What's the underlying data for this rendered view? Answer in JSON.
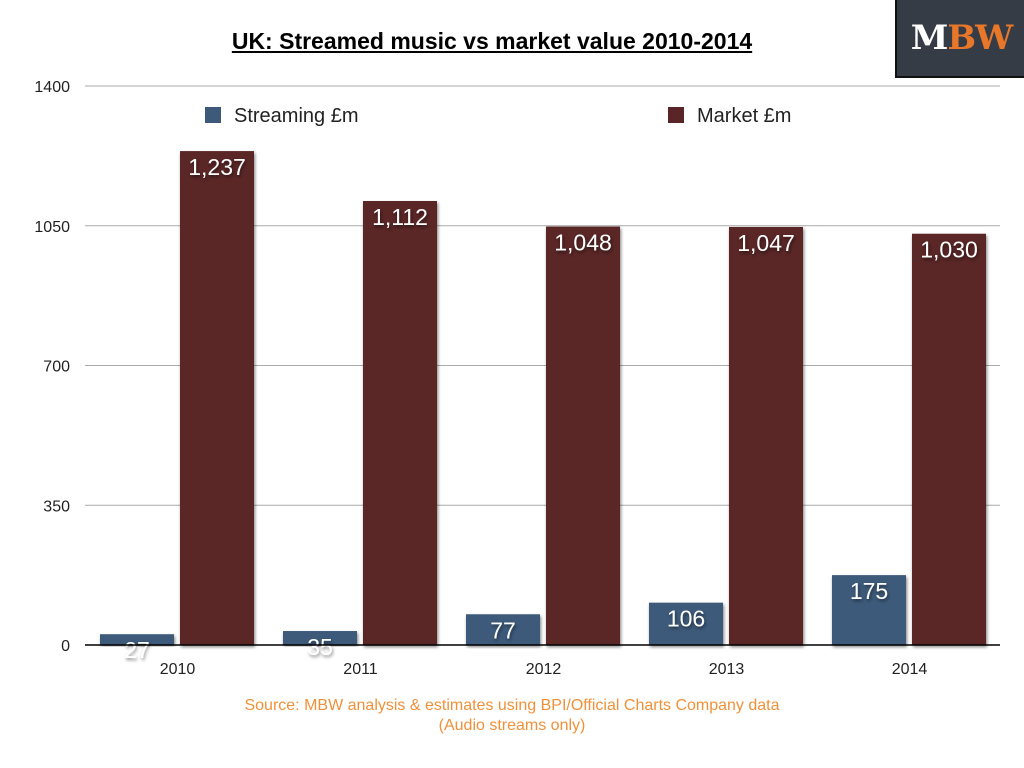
{
  "title": "UK: Streamed music vs market value 2010-2014",
  "logo": {
    "m": "M",
    "bw": "BW"
  },
  "source": {
    "line1": "Source: MBW analysis & estimates using BPI/Official Charts Company data",
    "line2": "(Audio streams only)"
  },
  "chart_data": {
    "type": "bar",
    "title": "UK: Streamed music vs market value 2010-2014",
    "categories": [
      "2010",
      "2011",
      "2012",
      "2013",
      "2014"
    ],
    "series": [
      {
        "name": "Streaming £m",
        "color": "#3e5a7a",
        "values": [
          27,
          35,
          77,
          106,
          175
        ],
        "labels": [
          "27",
          "35",
          "77",
          "106",
          "175"
        ]
      },
      {
        "name": "Market £m",
        "color": "#5a2526",
        "values": [
          1237,
          1112,
          1048,
          1047,
          1030
        ],
        "labels": [
          "1,237",
          "1,112",
          "1,048",
          "1,047",
          "1,030"
        ]
      }
    ],
    "yticks": [
      0,
      350,
      700,
      1050,
      1400
    ],
    "ylim": [
      0,
      1400
    ],
    "grid": true,
    "legend": "top"
  }
}
